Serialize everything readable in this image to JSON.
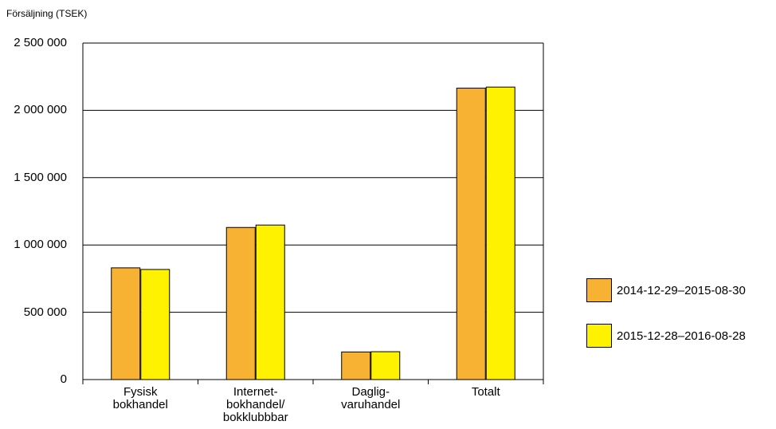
{
  "chart_data": {
    "type": "bar",
    "ylabel": "Försäljning (TSEK)",
    "ylim": [
      0,
      2500000
    ],
    "yticks": [
      {
        "value": 0,
        "label": "0"
      },
      {
        "value": 500000,
        "label": "500 000"
      },
      {
        "value": 1000000,
        "label": "1 000 000"
      },
      {
        "value": 1500000,
        "label": "1 500 000"
      },
      {
        "value": 2000000,
        "label": "2 000 000"
      },
      {
        "value": 2500000,
        "label": "2 500 000"
      }
    ],
    "grid": true,
    "legend_position": "right",
    "categories": [
      "Fysisk\nbokhandel",
      "Internet-\nbokhandel/\nbokklubbbar",
      "Daglig-\nvaruhandel",
      "Totalt"
    ],
    "series": [
      {
        "name": "2014-12-29–2015-08-30",
        "color": "#f7b233",
        "values": [
          830000,
          1130000,
          205000,
          2165000
        ]
      },
      {
        "name": "2015-12-28–2016-08-28",
        "color": "#fff200",
        "values": [
          818000,
          1148000,
          207000,
          2173000
        ]
      }
    ]
  }
}
